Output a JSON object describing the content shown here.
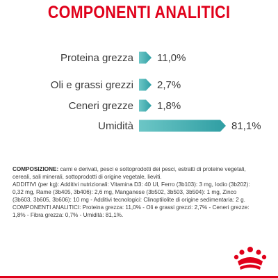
{
  "header": {
    "title": "COMPONENTI ANALITICI"
  },
  "chart_data": {
    "type": "bar",
    "orientation": "horizontal",
    "categories": [
      "Proteina grezza",
      "Oli e grassi grezzi",
      "Ceneri grezze",
      "Umidità"
    ],
    "values": [
      11.0,
      2.7,
      1.8,
      81.1
    ],
    "value_labels": [
      "11,0%",
      "2,7%",
      "1,8%",
      "81,1%"
    ],
    "unit": "%",
    "xlim": [
      0,
      81.1
    ],
    "bar_color": "#3aa6a9",
    "bar_color_light": "#6cc6c6",
    "title": "COMPONENTI ANALITICI",
    "xlabel": "",
    "ylabel": ""
  },
  "composition": {
    "composition_label": "COMPOSIZIONE:",
    "composition_text": " carni e derivati, pesci e sottoprodotti dei pesci, estratti di proteine vegetali, cereali, sali minerali, sottoprodotti di origine vegetale, lieviti.",
    "additives_label": "ADDITIVI",
    "additives_text": " (per kg): Additivi nutrizionali: Vitamina D3: 40 UI, Ferro (3b103): 3 mg, Iodio (3b202): 0,32 mg, Rame (3b405, 3b406): 2,6 mg, Manganese (3b502, 3b503, 3b504): 1 mg, Zinco (3b603, 3b605, 3b606): 10 mg - Additivi tecnologici: Clinoptilolite di origine sedimentaria: 2 g.",
    "analytical_label": "COMPONENTI ANALITICI:",
    "analytical_text": " Proteina grezza: 11,0% - Oli e grassi grezzi: 2,7% - Ceneri grezze: 1,8% - Fibra grezza: 0,7% - Umidità: 81,1%."
  },
  "brand": {
    "logo_icon": "royal-canin-crown-logo-icon",
    "accent_color": "#e0001a"
  }
}
